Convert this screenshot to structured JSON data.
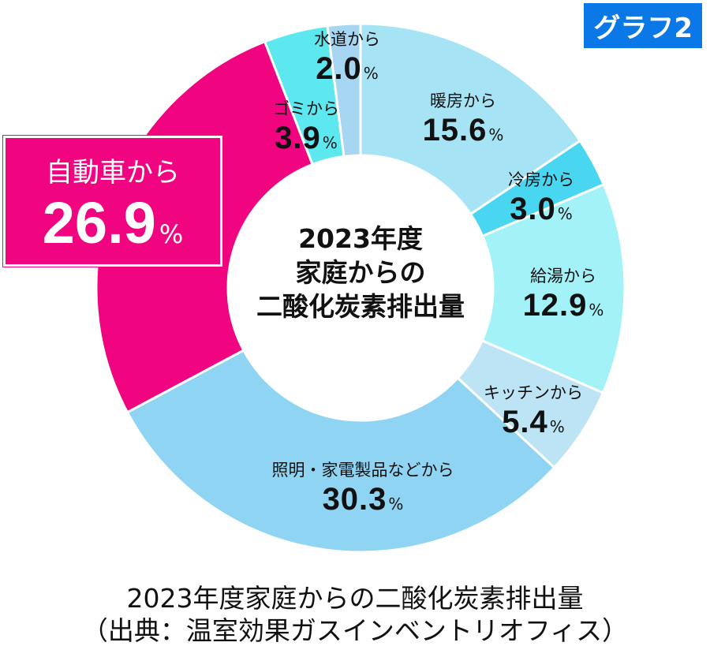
{
  "badge": "グラフ2",
  "chart_data": {
    "type": "pie",
    "subtype": "donut",
    "title": "2023年度家庭からの二酸化炭素排出量",
    "center_title": [
      "2023年度",
      "家庭からの",
      "二酸化炭素排出量"
    ],
    "unit": "%",
    "slices": [
      {
        "label": "暖房から",
        "value": 15.6,
        "color": "#a6e4f5"
      },
      {
        "label": "冷房から",
        "value": 3.0,
        "color": "#48d6f0"
      },
      {
        "label": "給湯から",
        "value": 12.9,
        "color": "#a2f2f7"
      },
      {
        "label": "キッチンから",
        "value": 5.4,
        "color": "#bce4f5"
      },
      {
        "label": "照明・家電製品などから",
        "value": 30.3,
        "color": "#8fd4f2"
      },
      {
        "label": "自動車から",
        "value": 26.9,
        "color": "#f0047f"
      },
      {
        "label": "ゴミから",
        "value": 3.9,
        "color": "#5ce8ee"
      },
      {
        "label": "水道から",
        "value": 2.0,
        "color": "#a6d6f2"
      }
    ],
    "value_texts": [
      "15.6",
      "3.0",
      "12.9",
      "5.4",
      "30.3",
      "26.9",
      "3.9",
      "2.0"
    ],
    "caption": [
      "2023年度家庭からの二酸化炭素排出量",
      "（出典：温室効果ガスインベントリオフィス）"
    ]
  }
}
